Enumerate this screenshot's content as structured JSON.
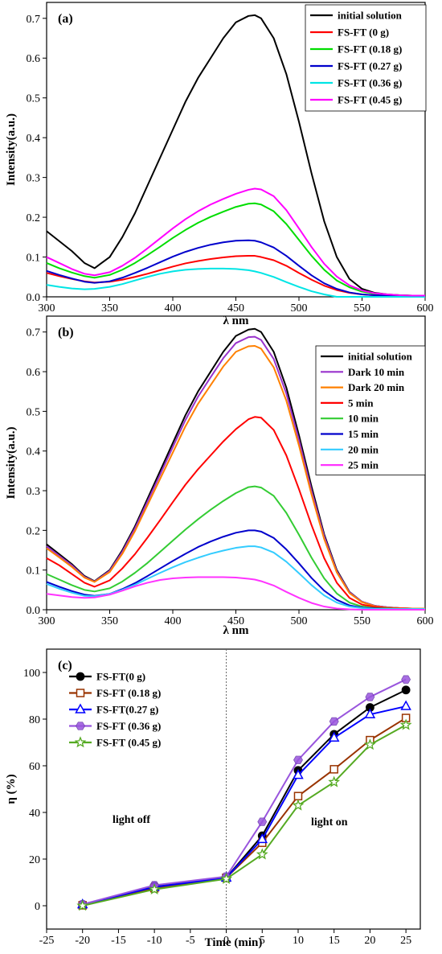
{
  "chart_data": [
    {
      "type": "line",
      "panel_label": "(a)",
      "xlabel": "λ nm",
      "ylabel": "Intensity(a.u.)",
      "xlim": [
        300,
        600
      ],
      "ylim": [
        0,
        0.74
      ],
      "xticks": [
        300,
        350,
        400,
        450,
        500,
        550,
        600
      ],
      "yticks": [
        0.0,
        0.1,
        0.2,
        0.3,
        0.4,
        0.5,
        0.6,
        0.7
      ],
      "ytick_labels": [
        "0.0",
        "0.1",
        "0.2",
        "0.3",
        "0.4",
        "0.5",
        "0.6",
        "0.7"
      ],
      "legend_position": "top-right",
      "x": [
        300,
        310,
        320,
        330,
        338,
        350,
        360,
        370,
        380,
        390,
        400,
        410,
        420,
        430,
        440,
        450,
        460,
        465,
        470,
        480,
        490,
        500,
        510,
        520,
        530,
        540,
        550,
        560,
        570,
        580,
        590,
        600
      ],
      "series": [
        {
          "name": "initial solution",
          "color": "#000000",
          "values": [
            0.165,
            0.14,
            0.115,
            0.085,
            0.072,
            0.1,
            0.15,
            0.21,
            0.28,
            0.35,
            0.42,
            0.49,
            0.55,
            0.6,
            0.65,
            0.69,
            0.706,
            0.708,
            0.7,
            0.65,
            0.56,
            0.44,
            0.31,
            0.19,
            0.1,
            0.045,
            0.02,
            0.01,
            0.006,
            0.004,
            0.003,
            0.003
          ]
        },
        {
          "name": "FS-FT (0 g)",
          "color": "#ff0000",
          "values": [
            0.06,
            0.052,
            0.045,
            0.039,
            0.036,
            0.038,
            0.043,
            0.05,
            0.058,
            0.067,
            0.076,
            0.084,
            0.09,
            0.095,
            0.099,
            0.102,
            0.103,
            0.103,
            0.1,
            0.092,
            0.078,
            0.06,
            0.043,
            0.028,
            0.017,
            0.01,
            0.006,
            0.004,
            0.003,
            0.002,
            0.002,
            0.002
          ]
        },
        {
          "name": "FS-FT (0.18 g)",
          "color": "#00dd00",
          "values": [
            0.085,
            0.072,
            0.061,
            0.052,
            0.048,
            0.055,
            0.068,
            0.085,
            0.105,
            0.126,
            0.148,
            0.168,
            0.186,
            0.201,
            0.214,
            0.226,
            0.234,
            0.235,
            0.232,
            0.215,
            0.183,
            0.143,
            0.103,
            0.068,
            0.041,
            0.024,
            0.013,
            0.008,
            0.005,
            0.004,
            0.003,
            0.003
          ]
        },
        {
          "name": "FS-FT (0.27 g)",
          "color": "#0000cc",
          "values": [
            0.065,
            0.055,
            0.046,
            0.038,
            0.035,
            0.039,
            0.048,
            0.06,
            0.073,
            0.087,
            0.101,
            0.113,
            0.123,
            0.131,
            0.137,
            0.141,
            0.142,
            0.141,
            0.137,
            0.124,
            0.103,
            0.078,
            0.054,
            0.034,
            0.02,
            0.011,
            0.006,
            0.004,
            0.003,
            0.002,
            0.002,
            0.002
          ]
        },
        {
          "name": "FS-FT (0.36 g)",
          "color": "#00e5e5",
          "values": [
            0.03,
            0.025,
            0.021,
            0.019,
            0.02,
            0.025,
            0.032,
            0.041,
            0.05,
            0.058,
            0.064,
            0.068,
            0.07,
            0.071,
            0.071,
            0.07,
            0.067,
            0.064,
            0.06,
            0.05,
            0.037,
            0.025,
            0.014,
            0.006,
            0.0,
            0.0,
            0.0,
            0.0,
            0.0,
            0.0,
            0.0,
            0.0
          ]
        },
        {
          "name": "FS-FT (0.45 g)",
          "color": "#ff00ff",
          "values": [
            0.1,
            0.085,
            0.07,
            0.058,
            0.054,
            0.062,
            0.078,
            0.098,
            0.122,
            0.147,
            0.172,
            0.195,
            0.215,
            0.232,
            0.246,
            0.259,
            0.269,
            0.272,
            0.27,
            0.253,
            0.218,
            0.172,
            0.125,
            0.083,
            0.051,
            0.029,
            0.016,
            0.009,
            0.006,
            0.004,
            0.003,
            0.003
          ]
        }
      ]
    },
    {
      "type": "line",
      "panel_label": "(b)",
      "xlabel": "λ nm",
      "ylabel": "Intensity(a.u.)",
      "xlim": [
        300,
        600
      ],
      "ylim": [
        0,
        0.74
      ],
      "xticks": [
        300,
        350,
        400,
        450,
        500,
        550,
        600
      ],
      "yticks": [
        0.0,
        0.1,
        0.2,
        0.3,
        0.4,
        0.5,
        0.6,
        0.7
      ],
      "ytick_labels": [
        "0.0",
        "0.1",
        "0.2",
        "0.3",
        "0.4",
        "0.5",
        "0.6",
        "0.7"
      ],
      "legend_position": "top-right",
      "x": [
        300,
        310,
        320,
        330,
        338,
        350,
        360,
        370,
        380,
        390,
        400,
        410,
        420,
        430,
        440,
        450,
        460,
        465,
        470,
        480,
        490,
        500,
        510,
        520,
        530,
        540,
        550,
        560,
        570,
        580,
        590,
        600
      ],
      "series": [
        {
          "name": "initial solution",
          "color": "#000000",
          "values": [
            0.165,
            0.14,
            0.115,
            0.085,
            0.072,
            0.1,
            0.15,
            0.21,
            0.28,
            0.35,
            0.42,
            0.49,
            0.55,
            0.6,
            0.65,
            0.69,
            0.706,
            0.708,
            0.7,
            0.65,
            0.56,
            0.44,
            0.31,
            0.19,
            0.1,
            0.045,
            0.02,
            0.01,
            0.006,
            0.004,
            0.003,
            0.003
          ]
        },
        {
          "name": "Dark 10 min",
          "color": "#9933cc",
          "values": [
            0.16,
            0.136,
            0.112,
            0.083,
            0.071,
            0.098,
            0.146,
            0.205,
            0.273,
            0.341,
            0.41,
            0.478,
            0.537,
            0.586,
            0.634,
            0.672,
            0.687,
            0.688,
            0.68,
            0.632,
            0.545,
            0.428,
            0.3,
            0.185,
            0.097,
            0.044,
            0.02,
            0.01,
            0.006,
            0.004,
            0.003,
            0.003
          ]
        },
        {
          "name": "Dark 20 min",
          "color": "#ff8000",
          "values": [
            0.155,
            0.132,
            0.108,
            0.081,
            0.07,
            0.095,
            0.141,
            0.198,
            0.264,
            0.33,
            0.396,
            0.462,
            0.519,
            0.566,
            0.613,
            0.65,
            0.664,
            0.665,
            0.658,
            0.611,
            0.527,
            0.414,
            0.29,
            0.178,
            0.094,
            0.042,
            0.019,
            0.009,
            0.005,
            0.004,
            0.003,
            0.003
          ]
        },
        {
          "name": "5 min",
          "color": "#ff0000",
          "values": [
            0.13,
            0.112,
            0.09,
            0.068,
            0.058,
            0.074,
            0.104,
            0.14,
            0.182,
            0.226,
            0.271,
            0.315,
            0.354,
            0.389,
            0.424,
            0.455,
            0.48,
            0.486,
            0.484,
            0.453,
            0.389,
            0.304,
            0.213,
            0.13,
            0.068,
            0.03,
            0.013,
            0.007,
            0.004,
            0.003,
            0.002,
            0.002
          ]
        },
        {
          "name": "10 min",
          "color": "#33cc33",
          "values": [
            0.09,
            0.076,
            0.062,
            0.05,
            0.046,
            0.054,
            0.071,
            0.093,
            0.118,
            0.146,
            0.174,
            0.202,
            0.228,
            0.252,
            0.274,
            0.294,
            0.309,
            0.311,
            0.308,
            0.287,
            0.244,
            0.189,
            0.131,
            0.079,
            0.041,
            0.018,
            0.008,
            0.004,
            0.003,
            0.002,
            0.002,
            0.002
          ]
        },
        {
          "name": "15 min",
          "color": "#0000cc",
          "values": [
            0.07,
            0.058,
            0.047,
            0.038,
            0.035,
            0.04,
            0.052,
            0.067,
            0.085,
            0.104,
            0.123,
            0.141,
            0.158,
            0.172,
            0.184,
            0.194,
            0.2,
            0.2,
            0.197,
            0.181,
            0.152,
            0.117,
            0.08,
            0.048,
            0.025,
            0.011,
            0.005,
            0.003,
            0.002,
            0.002,
            0.002,
            0.002
          ]
        },
        {
          "name": "20 min",
          "color": "#33ccff",
          "values": [
            0.065,
            0.053,
            0.043,
            0.035,
            0.034,
            0.04,
            0.05,
            0.063,
            0.078,
            0.093,
            0.107,
            0.12,
            0.131,
            0.141,
            0.149,
            0.156,
            0.16,
            0.16,
            0.157,
            0.144,
            0.121,
            0.092,
            0.062,
            0.036,
            0.018,
            0.008,
            0.004,
            0.002,
            0.002,
            0.002,
            0.002,
            0.002
          ]
        },
        {
          "name": "25 min",
          "color": "#ff33ff",
          "values": [
            0.04,
            0.036,
            0.032,
            0.03,
            0.031,
            0.038,
            0.048,
            0.059,
            0.068,
            0.075,
            0.079,
            0.081,
            0.082,
            0.082,
            0.082,
            0.081,
            0.078,
            0.076,
            0.072,
            0.061,
            0.045,
            0.03,
            0.017,
            0.008,
            0.003,
            0.001,
            0.0,
            0.0,
            0.0,
            0.0,
            0.0,
            0.0
          ]
        }
      ]
    },
    {
      "type": "line",
      "panel_label": "(c)",
      "xlabel": "Time (min)",
      "ylabel": "η (%)",
      "xlim": [
        -25,
        27
      ],
      "ylim": [
        -10,
        110
      ],
      "xticks": [
        -25,
        -20,
        -15,
        -10,
        -5,
        0,
        5,
        10,
        15,
        20,
        25
      ],
      "yticks": [
        0,
        20,
        40,
        60,
        80,
        100
      ],
      "legend_position": "top-left",
      "reference_line_x": 0,
      "annotations": [
        "light off",
        "light on"
      ],
      "x": [
        -20,
        -10,
        0,
        5,
        10,
        15,
        20,
        25
      ],
      "series": [
        {
          "name": "FS-FT(0 g)",
          "color": "#000000",
          "marker": "circle",
          "values": [
            0.3,
            8.5,
            12.0,
            30.0,
            58.0,
            73.5,
            85.0,
            92.5
          ]
        },
        {
          "name": "FS-FT (0.18 g)",
          "color": "#993300",
          "marker": "square",
          "values": [
            0.2,
            7.5,
            12.0,
            27.0,
            47.0,
            58.5,
            71.0,
            80.5
          ]
        },
        {
          "name": "FS-FT(0.27 g)",
          "color": "#0000ff",
          "marker": "triangle",
          "values": [
            0.5,
            8.0,
            12.0,
            28.5,
            56.0,
            72.0,
            82.0,
            85.5
          ]
        },
        {
          "name": "FS-FT (0.36 g)",
          "color": "#9955dd",
          "marker": "hexagon",
          "values": [
            0.6,
            8.8,
            12.5,
            36.0,
            62.5,
            79.0,
            89.5,
            97.0
          ]
        },
        {
          "name": "FS-FT (0.45 g)",
          "color": "#55aa22",
          "marker": "star",
          "values": [
            0.0,
            7.0,
            11.5,
            22.0,
            43.0,
            53.0,
            69.0,
            77.5
          ]
        }
      ]
    }
  ]
}
